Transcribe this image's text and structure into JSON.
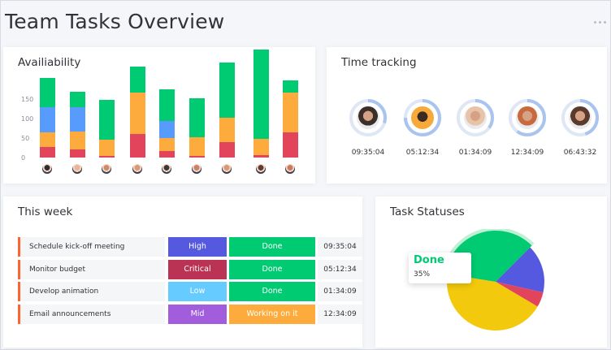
{
  "page": {
    "title": "Team Tasks Overview"
  },
  "colors": {
    "green": "#00ca72",
    "orange": "#fdab3d",
    "blue": "#579bfc",
    "red": "#e2445c",
    "yellow": "#f2c90c",
    "purple": "#a25ddc",
    "pink": "#ff158a",
    "indigo": "#5559df",
    "accent": "#ff642e"
  },
  "availability": {
    "title": "Availiability",
    "y_ticks": [
      "150",
      "100",
      "50",
      "0"
    ],
    "chart_data": {
      "type": "bar",
      "stacked": true,
      "ylim": [
        0,
        200
      ],
      "categories": [
        "1",
        "2",
        "3",
        "4",
        "5",
        "6",
        "7",
        "8",
        "9"
      ],
      "series": [
        {
          "color": "#e2445c",
          "values": [
            20,
            15,
            3,
            45,
            12,
            3,
            30,
            4,
            48
          ]
        },
        {
          "color": "#fdab3d",
          "values": [
            28,
            35,
            31,
            78,
            25,
            35,
            45,
            32,
            75
          ]
        },
        {
          "color": "#579bfc",
          "values": [
            48,
            45,
            0,
            0,
            33,
            0,
            0,
            0,
            0
          ]
        },
        {
          "color": "#00ca72",
          "values": [
            56,
            30,
            76,
            50,
            60,
            75,
            105,
            170,
            23
          ]
        }
      ]
    }
  },
  "time_tracking": {
    "title": "Time tracking",
    "people": [
      {
        "time": "09:35:04",
        "progress": 0.3,
        "ring": "#579bfc"
      },
      {
        "time": "05:12:34",
        "progress": 0.75,
        "ring": "#579bfc"
      },
      {
        "time": "01:34:09",
        "progress": 0.35,
        "ring": "#579bfc"
      },
      {
        "time": "12:34:09",
        "progress": 0.6,
        "ring": "#579bfc"
      },
      {
        "time": "06:43:32",
        "progress": 0.45,
        "ring": "#579bfc"
      }
    ]
  },
  "this_week": {
    "title": "This week",
    "tasks": [
      {
        "name": "Schedule kick-off meeting",
        "priority": "High",
        "priority_color": "#5559df",
        "status": "Done",
        "status_color": "#00ca72",
        "time": "09:35:04"
      },
      {
        "name": "Monitor budget",
        "priority": "Critical",
        "priority_color": "#bb3354",
        "status": "Done",
        "status_color": "#00ca72",
        "time": "05:12:34"
      },
      {
        "name": "Develop animation",
        "priority": "Low",
        "priority_color": "#66ccff",
        "status": "Done",
        "status_color": "#00ca72",
        "time": "01:34:09"
      },
      {
        "name": "Email announcements",
        "priority": "Mid",
        "priority_color": "#a25ddc",
        "status": "Working on it",
        "status_color": "#fdab3d",
        "time": "12:34:09"
      }
    ]
  },
  "task_statuses": {
    "title": "Task Statuses",
    "tooltip_label": "Done",
    "tooltip_value": "35%",
    "chart_data": {
      "type": "pie",
      "slices": [
        {
          "label": "Done",
          "value": 35,
          "color": "#00ca72"
        },
        {
          "color": "#5559df",
          "value": 16
        },
        {
          "color": "#e2445c",
          "value": 5
        },
        {
          "color": "#f2c90c",
          "value": 44
        }
      ]
    }
  }
}
